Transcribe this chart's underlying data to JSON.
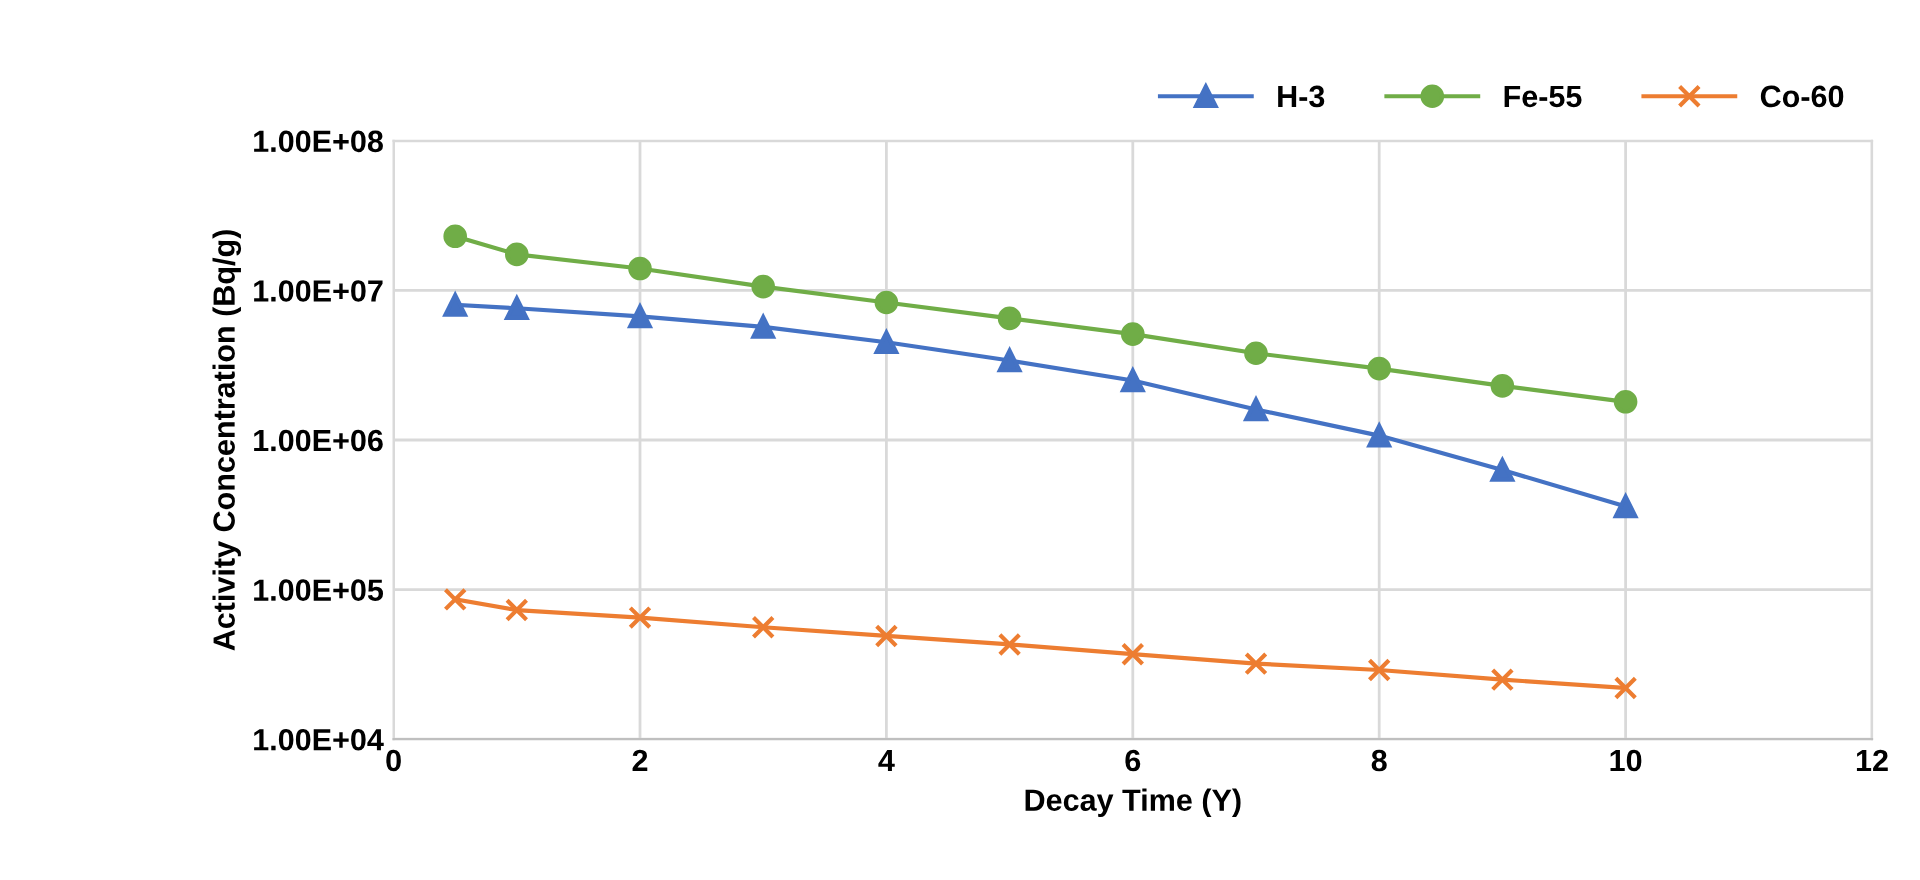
{
  "chart_data": {
    "type": "line",
    "xlabel": "Decay Time (Y)",
    "ylabel": "Activity Concentration (Bq/g)",
    "log": "y",
    "grid": true,
    "legend": "top right",
    "x": [
      0.5,
      1,
      2,
      3,
      4,
      5,
      6,
      7,
      8,
      9,
      10
    ],
    "xlim": [
      0,
      12
    ],
    "xticks": [
      0,
      2,
      4,
      6,
      8,
      10,
      12
    ],
    "ylim": [
      10000,
      100000000
    ],
    "yticks": [
      {
        "value": 10000,
        "label": "1.00E+04"
      },
      {
        "value": 100000,
        "label": "1.00E+05"
      },
      {
        "value": 1000000,
        "label": "1.00E+06"
      },
      {
        "value": 10000000,
        "label": "1.00E+07"
      },
      {
        "value": 100000000,
        "label": "1.00E+08"
      }
    ],
    "series": [
      {
        "name": "H-3",
        "color": "#4472c4",
        "marker": "triangle",
        "values": [
          8000000,
          7600000,
          6700000,
          5700000,
          4500000,
          3400000,
          2500000,
          1600000,
          1070000,
          630000,
          360000
        ]
      },
      {
        "name": "Fe-55",
        "color": "#70ad47",
        "marker": "circle",
        "values": [
          23000000,
          17400000,
          14000000,
          10600000,
          8300000,
          6500000,
          5100000,
          3800000,
          3000000,
          2300000,
          1800000
        ]
      },
      {
        "name": "Co-60",
        "color": "#ed7d31",
        "marker": "cross",
        "values": [
          86000,
          73000,
          65000,
          56000,
          49000,
          43000,
          37000,
          32000,
          29000,
          25000,
          22000
        ]
      }
    ]
  }
}
